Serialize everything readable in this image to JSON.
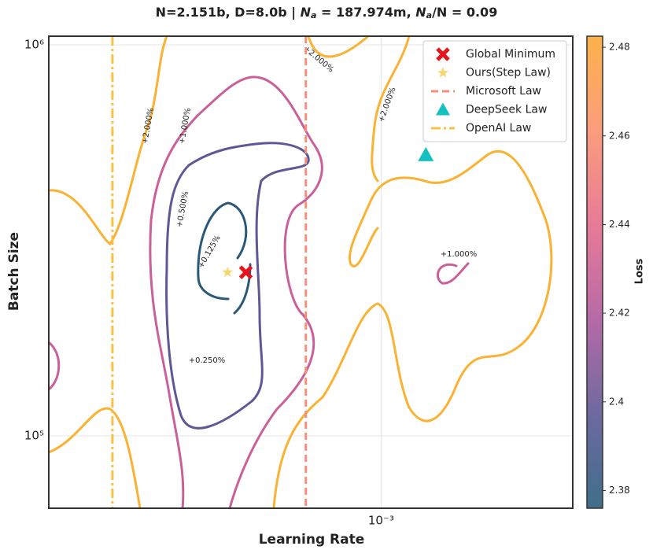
{
  "chart_data": {
    "type": "contour",
    "title_parts": [
      "N=2.151b, D=8.0b | ",
      "N",
      "a",
      " = 187.974m, ",
      "N",
      "a",
      "/N = 0.09"
    ],
    "x_label": "Learning Rate",
    "y_label": "Batch Size",
    "xscale": "log",
    "yscale": "log",
    "xlim": [
      0.000249,
      0.00223
    ],
    "ylim": [
      65300,
      1052000
    ],
    "xticks": [
      {
        "value": 0.001,
        "label": "10⁻³"
      }
    ],
    "yticks": [
      {
        "value": 100000,
        "label": "10⁵"
      },
      {
        "value": 1000000,
        "label": "10⁶"
      }
    ],
    "grid": true,
    "legend": "upper right",
    "series": [
      {
        "name": "Global Minimum",
        "kind": "point",
        "marker": "x",
        "color": "#e8141b",
        "x": 0.000568,
        "y": 262000
      },
      {
        "name": "Ours(Step Law)",
        "kind": "point",
        "marker": "star",
        "color": "#f5d76e",
        "x": 0.000526,
        "y": 262000
      },
      {
        "name": "Microsoft Law",
        "kind": "vline",
        "style": "dashed",
        "color": "#f4907a",
        "x": 0.00073
      },
      {
        "name": "DeepSeek Law",
        "kind": "point",
        "marker": "triangle",
        "color": "#12c2c0",
        "x": 0.001206,
        "y": 523000
      },
      {
        "name": "OpenAI Law",
        "kind": "vline",
        "style": "dashdot",
        "color": "#fbbf45",
        "x": 0.000325
      }
    ],
    "contour_labels": [
      "+0.125%",
      "+0.250%",
      "+0.500%",
      "+1.000%",
      "+1.000%",
      "+2.000%",
      "+2.000%",
      "+2.000%"
    ],
    "colorbar": {
      "label": "Loss",
      "lim": [
        2.376,
        2.4825
      ],
      "ticks": [
        2.38,
        2.4,
        2.42,
        2.44,
        2.46,
        2.48
      ],
      "colors": [
        "#3f6e8a",
        "#6d6aa0",
        "#b66aa6",
        "#e87a98",
        "#fa9d7c",
        "#fdb24a"
      ]
    }
  }
}
